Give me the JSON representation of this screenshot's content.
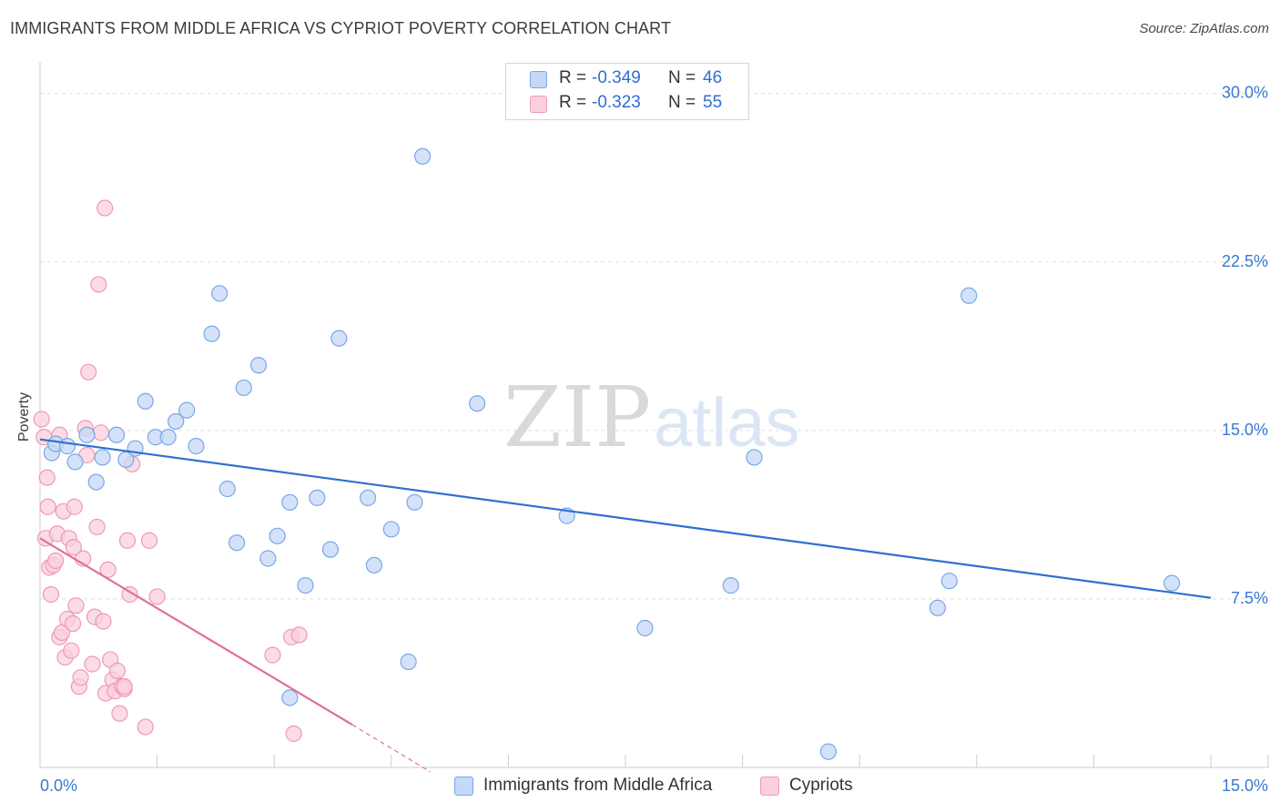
{
  "title": "IMMIGRANTS FROM MIDDLE AFRICA VS CYPRIOT POVERTY CORRELATION CHART",
  "source": "Source: ZipAtlas.com",
  "watermark": {
    "part1": "ZIP",
    "part2": "atlas"
  },
  "stats": [
    {
      "r_label": "R =",
      "r_value": "-0.349",
      "n_label": "N =",
      "n_value": "46"
    },
    {
      "r_label": "R =",
      "r_value": "-0.323",
      "n_label": "N =",
      "n_value": "55"
    }
  ],
  "legend": [
    {
      "label": "Immigrants from Middle Africa"
    },
    {
      "label": "Cypriots"
    }
  ],
  "colors": {
    "blue_fill": "#c4d8f7",
    "blue_stroke": "#7aa6e8",
    "blue_line": "#2f6fd1",
    "pink_fill": "#f9d0dc",
    "pink_stroke": "#ef99b3",
    "pink_line": "#e0709a",
    "tick_label": "#3a78d4",
    "grid": "#dddddd"
  },
  "chart_data": {
    "type": "scatter",
    "title": "IMMIGRANTS FROM MIDDLE AFRICA VS CYPRIOT POVERTY CORRELATION CHART",
    "xlabel": "",
    "ylabel": "Poverty",
    "xlim": [
      0,
      15
    ],
    "ylim": [
      0,
      31
    ],
    "x_tick_labels": [
      {
        "value": 0,
        "label": "0.0%"
      },
      {
        "value": 15,
        "label": "15.0%"
      }
    ],
    "y_tick_labels": [
      {
        "value": 7.5,
        "label": "7.5%"
      },
      {
        "value": 15,
        "label": "15.0%"
      },
      {
        "value": 22.5,
        "label": "22.5%"
      },
      {
        "value": 30,
        "label": "30.0%"
      }
    ],
    "series": [
      {
        "name": "Immigrants from Middle Africa",
        "color": "#7aa6e8",
        "trend": {
          "x": [
            0,
            15
          ],
          "y": [
            14.6,
            7.55
          ]
        },
        "points": [
          [
            0.15,
            14.0
          ],
          [
            0.2,
            14.4
          ],
          [
            0.45,
            13.6
          ],
          [
            0.6,
            14.8
          ],
          [
            0.72,
            12.7
          ],
          [
            0.8,
            13.8
          ],
          [
            0.98,
            14.8
          ],
          [
            1.1,
            13.7
          ],
          [
            1.22,
            14.2
          ],
          [
            1.35,
            16.3
          ],
          [
            1.48,
            14.7
          ],
          [
            1.64,
            14.7
          ],
          [
            1.74,
            15.4
          ],
          [
            1.88,
            15.9
          ],
          [
            2.0,
            14.3
          ],
          [
            2.2,
            19.3
          ],
          [
            2.3,
            21.1
          ],
          [
            2.4,
            12.4
          ],
          [
            2.52,
            10.0
          ],
          [
            2.61,
            16.9
          ],
          [
            2.8,
            17.9
          ],
          [
            2.92,
            9.3
          ],
          [
            3.04,
            10.3
          ],
          [
            3.2,
            11.8
          ],
          [
            3.4,
            8.1
          ],
          [
            3.55,
            12.0
          ],
          [
            3.72,
            9.7
          ],
          [
            3.83,
            19.1
          ],
          [
            4.2,
            12.0
          ],
          [
            4.28,
            9.0
          ],
          [
            4.5,
            10.6
          ],
          [
            4.72,
            4.7
          ],
          [
            4.8,
            11.8
          ],
          [
            4.9,
            27.2
          ],
          [
            5.6,
            16.2
          ],
          [
            6.75,
            11.2
          ],
          [
            7.75,
            6.2
          ],
          [
            8.85,
            8.1
          ],
          [
            9.15,
            13.8
          ],
          [
            10.1,
            0.7
          ],
          [
            11.5,
            7.1
          ],
          [
            11.65,
            8.3
          ],
          [
            11.9,
            21.0
          ],
          [
            14.5,
            8.2
          ],
          [
            3.2,
            3.1
          ],
          [
            0.35,
            14.3
          ]
        ]
      },
      {
        "name": "Cypriots",
        "color": "#ef99b3",
        "trend": {
          "x": [
            0,
            4.0
          ],
          "y": [
            10.2,
            1.9
          ]
        },
        "trend_dashed": {
          "x": [
            4.0,
            5.0
          ],
          "y": [
            1.9,
            -0.2
          ]
        },
        "points": [
          [
            0.02,
            15.5
          ],
          [
            0.05,
            14.7
          ],
          [
            0.07,
            10.2
          ],
          [
            0.09,
            12.9
          ],
          [
            0.1,
            11.6
          ],
          [
            0.12,
            8.9
          ],
          [
            0.14,
            7.7
          ],
          [
            0.17,
            9.0
          ],
          [
            0.2,
            9.2
          ],
          [
            0.22,
            10.4
          ],
          [
            0.25,
            5.8
          ],
          [
            0.28,
            6.0
          ],
          [
            0.3,
            11.4
          ],
          [
            0.32,
            4.9
          ],
          [
            0.35,
            6.6
          ],
          [
            0.37,
            10.2
          ],
          [
            0.4,
            5.2
          ],
          [
            0.42,
            6.4
          ],
          [
            0.44,
            11.6
          ],
          [
            0.46,
            7.2
          ],
          [
            0.5,
            3.6
          ],
          [
            0.52,
            4.0
          ],
          [
            0.55,
            9.3
          ],
          [
            0.58,
            15.1
          ],
          [
            0.62,
            17.6
          ],
          [
            0.67,
            4.6
          ],
          [
            0.7,
            6.7
          ],
          [
            0.73,
            10.7
          ],
          [
            0.75,
            21.5
          ],
          [
            0.78,
            14.9
          ],
          [
            0.81,
            6.5
          ],
          [
            0.84,
            3.3
          ],
          [
            0.87,
            8.8
          ],
          [
            0.9,
            4.8
          ],
          [
            0.93,
            3.9
          ],
          [
            0.96,
            3.4
          ],
          [
            0.99,
            4.3
          ],
          [
            1.02,
            2.4
          ],
          [
            1.05,
            3.6
          ],
          [
            1.08,
            3.5
          ],
          [
            1.12,
            10.1
          ],
          [
            1.15,
            7.7
          ],
          [
            1.18,
            13.5
          ],
          [
            1.35,
            1.8
          ],
          [
            1.4,
            10.1
          ],
          [
            1.5,
            7.6
          ],
          [
            2.98,
            5.0
          ],
          [
            3.22,
            5.8
          ],
          [
            3.25,
            1.5
          ],
          [
            3.32,
            5.9
          ],
          [
            0.83,
            24.9
          ],
          [
            0.6,
            13.9
          ],
          [
            0.25,
            14.8
          ],
          [
            0.43,
            9.8
          ],
          [
            1.08,
            3.6
          ]
        ]
      }
    ]
  }
}
